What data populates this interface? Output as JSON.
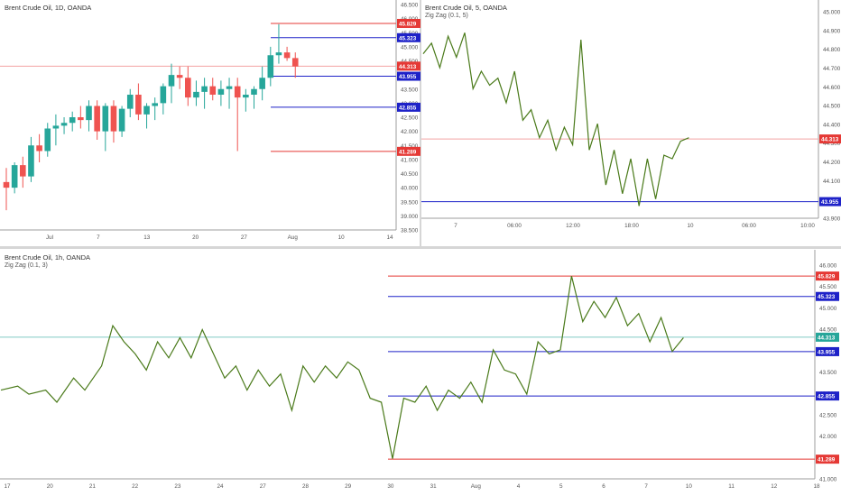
{
  "colors": {
    "up": "#26a69a",
    "down": "#ef5350",
    "zigzag": "#4a7a1a",
    "red_line": "#e53935",
    "blue_line": "#1e22c8",
    "grid_text": "#555555",
    "axis_line": "#9e9e9e",
    "current_line": "#f3a3a3",
    "current_line_bottom": "#80cbc4"
  },
  "panels": {
    "daily": {
      "title": "Brent Crude Oil, 1D, OANDA"
    },
    "five_min": {
      "title": "Brent Crude Oil, 5, OANDA",
      "indicator": "Zig Zag (0.1, 5)"
    },
    "hourly": {
      "title": "Brent Crude Oil, 1h, OANDA",
      "indicator": "Zig Zag (0.1, 3)"
    }
  },
  "chart_data": [
    {
      "type": "candlestick",
      "title": "Brent Crude Oil, 1D, OANDA",
      "y_ticks": [
        "46.500",
        "46.000",
        "45.500",
        "45.000",
        "44.500",
        "44.000",
        "43.500",
        "43.000",
        "42.500",
        "42.000",
        "41.500",
        "41.000",
        "40.500",
        "40.000",
        "39.500",
        "39.000",
        "38.500"
      ],
      "x_ticks": [
        "Jul",
        "7",
        "13",
        "20",
        "27",
        "Aug",
        "10",
        "14"
      ],
      "ylim": [
        38.5,
        46.5
      ],
      "candles": [
        [
          40.2,
          40.7,
          39.2,
          40.0
        ],
        [
          40.0,
          40.9,
          39.8,
          40.8
        ],
        [
          40.8,
          41.1,
          40.0,
          40.4
        ],
        [
          40.4,
          41.8,
          40.2,
          41.5
        ],
        [
          41.5,
          41.9,
          40.9,
          41.3
        ],
        [
          41.3,
          42.3,
          41.1,
          42.1
        ],
        [
          42.1,
          42.6,
          41.5,
          42.2
        ],
        [
          42.2,
          42.5,
          41.9,
          42.3
        ],
        [
          42.3,
          42.7,
          42.0,
          42.5
        ],
        [
          42.5,
          42.9,
          42.1,
          42.4
        ],
        [
          42.4,
          43.1,
          42.0,
          42.9
        ],
        [
          42.9,
          43.1,
          41.7,
          42.0
        ],
        [
          42.0,
          43.0,
          41.3,
          42.9
        ],
        [
          42.9,
          43.1,
          41.6,
          42.0
        ],
        [
          42.0,
          42.9,
          41.8,
          42.8
        ],
        [
          42.8,
          43.5,
          42.5,
          43.3
        ],
        [
          43.3,
          43.7,
          42.4,
          42.6
        ],
        [
          42.6,
          43.0,
          42.1,
          42.9
        ],
        [
          42.9,
          43.2,
          42.4,
          43.0
        ],
        [
          43.0,
          43.7,
          42.6,
          43.6
        ],
        [
          43.6,
          44.4,
          43.0,
          44.0
        ],
        [
          44.0,
          44.3,
          43.5,
          43.9
        ],
        [
          43.9,
          44.3,
          42.9,
          43.2
        ],
        [
          43.2,
          43.8,
          42.9,
          43.4
        ],
        [
          43.4,
          43.9,
          42.8,
          43.6
        ],
        [
          43.6,
          43.9,
          43.1,
          43.3
        ],
        [
          43.3,
          43.8,
          42.9,
          43.5
        ],
        [
          43.5,
          43.9,
          42.8,
          43.6
        ],
        [
          43.6,
          43.9,
          41.3,
          43.2
        ],
        [
          43.2,
          43.5,
          42.7,
          43.3
        ],
        [
          43.3,
          43.6,
          42.8,
          43.5
        ],
        [
          43.5,
          44.3,
          43.1,
          43.9
        ],
        [
          43.9,
          45.0,
          43.6,
          44.7
        ],
        [
          44.7,
          45.8,
          44.4,
          44.8
        ],
        [
          44.8,
          45.0,
          44.5,
          44.6
        ],
        [
          44.6,
          44.8,
          43.9,
          44.3
        ]
      ],
      "levels": [
        {
          "value": 45.829,
          "label": "45.829",
          "color": "red"
        },
        {
          "value": 45.323,
          "label": "45.323",
          "color": "blue"
        },
        {
          "value": 44.313,
          "label": "44.313",
          "color": "red",
          "current": true
        },
        {
          "value": 43.955,
          "label": "43.955",
          "color": "blue"
        },
        {
          "value": 42.855,
          "label": "42.855",
          "color": "blue"
        },
        {
          "value": 41.289,
          "label": "41.289",
          "color": "red"
        }
      ]
    },
    {
      "type": "line",
      "title": "Brent Crude Oil, 5, OANDA",
      "series": [
        {
          "name": "Zig Zag (0.1, 5)"
        }
      ],
      "y_ticks": [
        "45.000",
        "44.900",
        "44.800",
        "44.700",
        "44.600",
        "44.500",
        "44.400",
        "44.300",
        "44.200",
        "44.100",
        "44.000",
        "43.900"
      ],
      "x_ticks": [
        "7",
        "06:00",
        "12:00",
        "18:00",
        "10",
        "06:00",
        "10:00"
      ],
      "ylim": [
        43.86,
        45.04
      ],
      "zigzag": [
        [
          0,
          44.8
        ],
        [
          4,
          44.86
        ],
        [
          8,
          44.72
        ],
        [
          12,
          44.9
        ],
        [
          16,
          44.78
        ],
        [
          20,
          44.92
        ],
        [
          24,
          44.6
        ],
        [
          28,
          44.7
        ],
        [
          32,
          44.62
        ],
        [
          36,
          44.66
        ],
        [
          40,
          44.52
        ],
        [
          44,
          44.7
        ],
        [
          48,
          44.42
        ],
        [
          52,
          44.48
        ],
        [
          56,
          44.32
        ],
        [
          60,
          44.42
        ],
        [
          64,
          44.25
        ],
        [
          68,
          44.38
        ],
        [
          72,
          44.28
        ],
        [
          76,
          44.88
        ],
        [
          80,
          44.25
        ],
        [
          84,
          44.4
        ],
        [
          88,
          44.05
        ],
        [
          92,
          44.25
        ],
        [
          96,
          44.0
        ],
        [
          100,
          44.2
        ],
        [
          104,
          43.93
        ],
        [
          108,
          44.2
        ],
        [
          112,
          43.97
        ],
        [
          116,
          44.22
        ],
        [
          120,
          44.2
        ],
        [
          124,
          44.3
        ],
        [
          128,
          44.32
        ]
      ],
      "levels": [
        {
          "value": 44.313,
          "label": "44.313",
          "color": "red",
          "current": true
        },
        {
          "value": 43.955,
          "label": "43.955",
          "color": "blue"
        }
      ]
    },
    {
      "type": "line",
      "title": "Brent Crude Oil, 1h, OANDA",
      "series": [
        {
          "name": "Zig Zag (0.1, 3)"
        }
      ],
      "y_ticks": [
        "46.000",
        "45.500",
        "45.000",
        "44.500",
        "44.000",
        "43.500",
        "43.000",
        "42.500",
        "42.000",
        "41.500",
        "41.000"
      ],
      "x_ticks": [
        "17",
        "20",
        "21",
        "22",
        "23",
        "24",
        "27",
        "28",
        "29",
        "30",
        "31",
        "Aug",
        "4",
        "5",
        "6",
        "7",
        "10",
        "11",
        "12",
        "18"
      ],
      "ylim": [
        40.8,
        46.1
      ],
      "zigzag": [
        [
          0,
          43.0
        ],
        [
          6,
          43.1
        ],
        [
          10,
          42.9
        ],
        [
          16,
          43.0
        ],
        [
          20,
          42.7
        ],
        [
          26,
          43.3
        ],
        [
          30,
          43.0
        ],
        [
          36,
          43.6
        ],
        [
          40,
          44.6
        ],
        [
          44,
          44.2
        ],
        [
          48,
          43.9
        ],
        [
          52,
          43.5
        ],
        [
          56,
          44.2
        ],
        [
          60,
          43.8
        ],
        [
          64,
          44.3
        ],
        [
          68,
          43.8
        ],
        [
          72,
          44.5
        ],
        [
          76,
          43.9
        ],
        [
          80,
          43.3
        ],
        [
          84,
          43.6
        ],
        [
          88,
          43.0
        ],
        [
          92,
          43.5
        ],
        [
          96,
          43.1
        ],
        [
          100,
          43.4
        ],
        [
          104,
          42.5
        ],
        [
          108,
          43.6
        ],
        [
          112,
          43.2
        ],
        [
          116,
          43.6
        ],
        [
          120,
          43.3
        ],
        [
          124,
          43.7
        ],
        [
          128,
          43.5
        ],
        [
          132,
          42.8
        ],
        [
          136,
          42.7
        ],
        [
          140,
          41.3
        ],
        [
          144,
          42.8
        ],
        [
          148,
          42.7
        ],
        [
          152,
          43.1
        ],
        [
          156,
          42.5
        ],
        [
          160,
          43.0
        ],
        [
          164,
          42.8
        ],
        [
          168,
          43.2
        ],
        [
          172,
          42.7
        ],
        [
          176,
          44.0
        ],
        [
          180,
          43.5
        ],
        [
          184,
          43.4
        ],
        [
          188,
          42.9
        ],
        [
          192,
          44.2
        ],
        [
          196,
          43.9
        ],
        [
          200,
          44.0
        ],
        [
          204,
          45.83
        ],
        [
          208,
          44.7
        ],
        [
          212,
          45.2
        ],
        [
          216,
          44.8
        ],
        [
          220,
          45.3
        ],
        [
          224,
          44.6
        ],
        [
          228,
          44.9
        ],
        [
          232,
          44.2
        ],
        [
          236,
          44.8
        ],
        [
          240,
          43.96
        ],
        [
          244,
          44.3
        ]
      ],
      "levels": [
        {
          "value": 45.829,
          "label": "45.829",
          "color": "red"
        },
        {
          "value": 45.323,
          "label": "45.323",
          "color": "blue"
        },
        {
          "value": 44.313,
          "label": "44.313",
          "color": "green",
          "current": true
        },
        {
          "value": 43.955,
          "label": "43.955",
          "color": "blue"
        },
        {
          "value": 42.855,
          "label": "42.855",
          "color": "blue"
        },
        {
          "value": 41.289,
          "label": "41.289",
          "color": "red"
        }
      ]
    }
  ]
}
